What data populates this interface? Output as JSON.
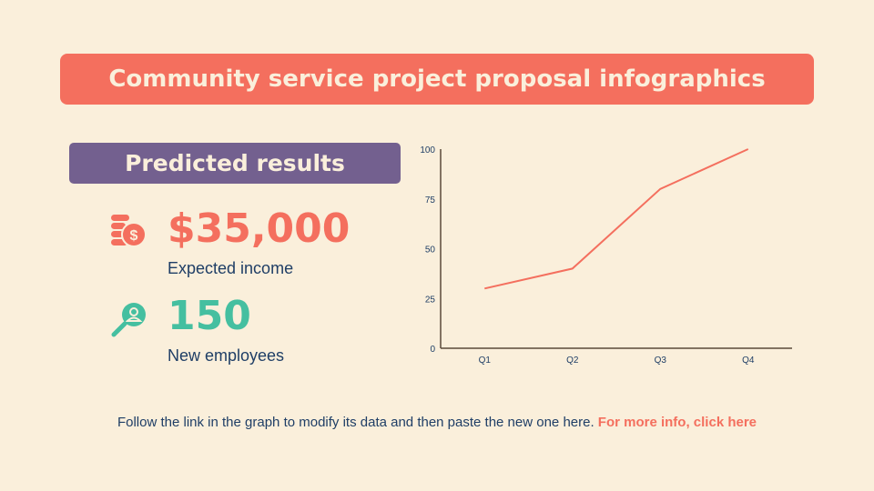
{
  "title": "Community service project proposal infographics",
  "subtitle": "Predicted results",
  "stats": [
    {
      "value": "$35,000",
      "label": "Expected income",
      "icon": "coins-dollar-icon",
      "color": "#f46f5e"
    },
    {
      "value": "150",
      "label": "New employees",
      "icon": "search-user-icon",
      "color": "#45bfa0"
    }
  ],
  "footer": {
    "text": "Follow the link in the graph to modify its data and then paste the new one here. ",
    "link": "For more info, click here"
  },
  "colors": {
    "accent": "#f46f5e",
    "purple": "#73608f",
    "teal": "#45bfa0",
    "text": "#1f3e66",
    "background": "#faefdb"
  },
  "chart_data": {
    "type": "line",
    "categories": [
      "Q1",
      "Q2",
      "Q3",
      "Q4"
    ],
    "values": [
      30,
      40,
      80,
      100
    ],
    "ylim": [
      0,
      100
    ],
    "yticks": [
      0,
      25,
      50,
      75,
      100
    ],
    "grid": false,
    "line_color": "#f46f5e"
  }
}
